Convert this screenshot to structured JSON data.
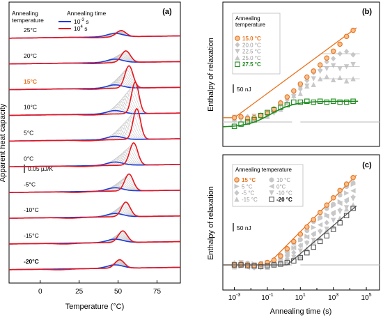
{
  "colors": {
    "blue": "#1f3bd6",
    "red": "#e8141c",
    "orange": "#e8731e",
    "green": "#1f8a1f",
    "grey": "#c8c8c8",
    "darkgrey": "#555555",
    "axis": "#000000"
  },
  "chart_data": [
    {
      "panel_label": "(a)",
      "type": "line",
      "xlabel": "Temperature (°C)",
      "ylabel": "Apparent heat capacity",
      "xlim": [
        -20,
        90
      ],
      "xticks": [
        0,
        25,
        50,
        75
      ],
      "legend_title_left": [
        "Annealing",
        "temperature"
      ],
      "legend_title": "Annealing time",
      "legend": [
        {
          "name": "10-3 s",
          "base": "10",
          "exp": "-3",
          "unit": "s",
          "color": "#1f3bd6"
        },
        {
          "name": "104 s",
          "base": "10",
          "exp": "4",
          "unit": "s",
          "color": "#e8141c"
        }
      ],
      "scale_bar_label": "0.05 µJ/K",
      "traces": [
        {
          "label": "25°C",
          "ta": 25,
          "blue_peak": 48,
          "red_peak": 52,
          "red_height": 0.4,
          "highlight": false
        },
        {
          "label": "20°C",
          "ta": 20,
          "blue_peak": 48,
          "red_peak": 55,
          "red_height": 0.75,
          "highlight": false
        },
        {
          "label": "15°C",
          "ta": 15,
          "blue_peak": 48,
          "red_peak": 57,
          "red_height": 1.45,
          "highlight": true
        },
        {
          "label": "10°C",
          "ta": 10,
          "blue_peak": 48,
          "red_peak": 61,
          "red_height": 2.05,
          "highlight": false
        },
        {
          "label": "5°C",
          "ta": 5,
          "blue_peak": 48,
          "red_peak": 62,
          "red_height": 2.0,
          "highlight": false
        },
        {
          "label": "0°C",
          "ta": 0,
          "blue_peak": 48,
          "red_peak": 60,
          "red_height": 1.45,
          "highlight": false
        },
        {
          "label": "-5°C",
          "ta": -5,
          "blue_peak": 48,
          "red_peak": 57,
          "red_height": 1.1,
          "highlight": false
        },
        {
          "label": "-10°C",
          "ta": -10,
          "blue_peak": 48,
          "red_peak": 55,
          "red_height": 0.95,
          "highlight": false
        },
        {
          "label": "-15°C",
          "ta": -15,
          "blue_peak": 48,
          "red_peak": 53,
          "red_height": 0.75,
          "highlight": false
        },
        {
          "label": "-20°C",
          "ta": -20,
          "blue_peak": 48,
          "red_peak": 51,
          "red_height": 0.55,
          "highlight": false
        }
      ]
    },
    {
      "panel_label": "(b)",
      "type": "scatter",
      "ylabel": "Enthalpy of relaxation",
      "xscale": "log",
      "xlim_exp": [
        -3.7,
        5.8
      ],
      "legend_title": "Annealing temperature",
      "scale_bar_label": "50 nJ",
      "series": [
        {
          "name": "15.0 °C",
          "marker": "circle",
          "color": "#e8731e",
          "bold": true,
          "fit": "line",
          "x_exp": [
            -3.0,
            -2.6,
            -2.2,
            -1.8,
            -1.4,
            -1.0,
            -0.6,
            -0.2,
            0.2,
            0.6,
            1.0,
            1.4,
            1.8,
            2.2,
            2.6,
            3.0,
            3.4,
            3.8,
            4.2
          ],
          "y_nj": [
            10,
            12,
            8,
            10,
            15,
            20,
            30,
            44,
            58,
            72,
            88,
            104,
            118,
            132,
            148,
            164,
            180,
            198,
            212
          ]
        },
        {
          "name": "20.0 °C",
          "marker": "diamond",
          "color": "#c8c8c8",
          "bold": false,
          "plateau_nj": 158
        },
        {
          "name": "22.5 °C",
          "marker": "triangle-down",
          "color": "#c8c8c8",
          "bold": false,
          "plateau_nj": 128
        },
        {
          "name": "25.0 °C",
          "marker": "triangle-up",
          "color": "#c8c8c8",
          "bold": false,
          "plateau_nj": 100
        },
        {
          "name": "27.5 °C",
          "marker": "square",
          "color": "#1f8a1f",
          "bold": true,
          "fit": "curve",
          "x_exp": [
            -3.0,
            -2.6,
            -2.2,
            -1.8,
            -1.4,
            -1.0,
            -0.6,
            -0.2,
            0.2,
            0.6,
            1.0,
            1.4,
            1.8,
            2.2,
            2.6,
            3.0,
            3.4,
            3.8,
            4.2
          ],
          "y_nj": [
            -10,
            -5,
            0,
            5,
            15,
            22,
            28,
            34,
            40,
            46,
            46,
            48,
            46,
            48,
            46,
            48,
            46,
            46,
            48
          ]
        }
      ]
    },
    {
      "panel_label": "(c)",
      "type": "scatter",
      "ylabel": "Enthalpy of relaxation",
      "xlabel": "Annealing time (s)",
      "xscale": "log",
      "xlim_exp": [
        -3.7,
        5.8
      ],
      "xticks_exp": [
        -3,
        -1,
        1,
        3,
        5
      ],
      "legend_title": "Annealing temperature",
      "scale_bar_label": "50 nJ",
      "series": [
        {
          "name": "15 °C",
          "marker": "circle",
          "color": "#e8731e",
          "bold": true,
          "fit": "line",
          "x_exp": [
            -3.0,
            -2.6,
            -2.2,
            -1.8,
            -1.4,
            -1.0,
            -0.6,
            -0.2,
            0.2,
            0.6,
            1.0,
            1.4,
            1.8,
            2.2,
            2.6,
            3.0,
            3.4,
            3.8,
            4.2
          ],
          "y_nj": [
            0,
            2,
            0,
            -2,
            2,
            6,
            12,
            22,
            40,
            58,
            76,
            94,
            112,
            130,
            148,
            166,
            184,
            200,
            216
          ]
        },
        {
          "name": "10 °C",
          "marker": "circle",
          "color": "#c8c8c8",
          "bold": false
        },
        {
          "name": "5 °C",
          "marker": "triangle-right",
          "color": "#c8c8c8",
          "bold": false
        },
        {
          "name": "0°C",
          "marker": "triangle-left",
          "color": "#c8c8c8",
          "bold": false
        },
        {
          "name": "-5 °C",
          "marker": "diamond",
          "color": "#c8c8c8",
          "bold": false
        },
        {
          "name": "-10 °C",
          "marker": "triangle-down",
          "color": "#c8c8c8",
          "bold": false
        },
        {
          "name": "-15 °C",
          "marker": "triangle-up",
          "color": "#c8c8c8",
          "bold": false
        },
        {
          "name": "-20 °C",
          "marker": "square",
          "color": "#555555",
          "bold": true,
          "fit": "line",
          "x_exp": [
            -3.0,
            -2.6,
            -2.2,
            -1.8,
            -1.4,
            -1.0,
            -0.6,
            -0.2,
            0.2,
            0.6,
            1.0,
            1.4,
            1.8,
            2.2,
            2.6,
            3.0,
            3.4,
            3.8,
            4.2
          ],
          "y_nj": [
            0,
            0,
            -2,
            -2,
            -4,
            -2,
            0,
            2,
            6,
            10,
            18,
            30,
            44,
            58,
            72,
            88,
            104,
            122,
            140
          ]
        }
      ]
    }
  ]
}
